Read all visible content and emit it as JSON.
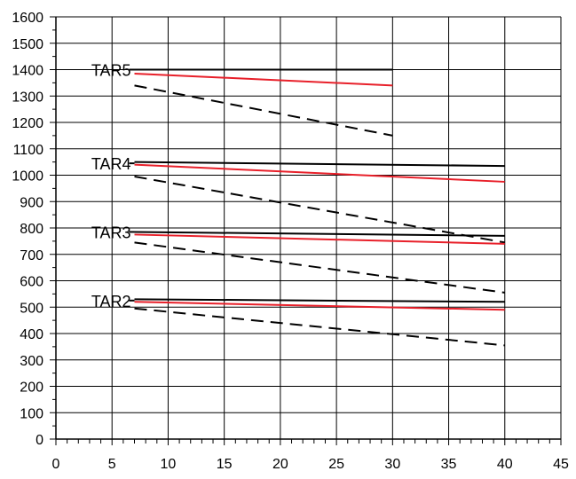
{
  "chart_data": {
    "type": "line",
    "title": "",
    "xlabel": "",
    "ylabel": "",
    "xlim": [
      0,
      45
    ],
    "ylim": [
      0,
      1600
    ],
    "x_ticks": [
      0,
      5,
      10,
      15,
      20,
      25,
      30,
      35,
      40,
      45
    ],
    "y_ticks": [
      0,
      100,
      200,
      300,
      400,
      500,
      600,
      700,
      800,
      900,
      1000,
      1100,
      1200,
      1300,
      1400,
      1500,
      1600
    ],
    "grid": true,
    "legend": "none",
    "colors": {
      "black": "#000000",
      "red": "#e8202a"
    },
    "groups": [
      {
        "label": "TAR5",
        "label_anchor": {
          "x": 7,
          "y": 1400
        },
        "series": [
          {
            "style": "solid",
            "color": "#000000",
            "x": [
              7,
              30
            ],
            "y": [
              1400,
              1400
            ]
          },
          {
            "style": "solid",
            "color": "#e8202a",
            "x": [
              7,
              30
            ],
            "y": [
              1385,
              1340
            ]
          },
          {
            "style": "dashed",
            "color": "#000000",
            "x": [
              7,
              30
            ],
            "y": [
              1340,
              1150
            ]
          }
        ]
      },
      {
        "label": "TAR4",
        "label_anchor": {
          "x": 7,
          "y": 1045
        },
        "series": [
          {
            "style": "solid",
            "color": "#000000",
            "x": [
              7,
              40
            ],
            "y": [
              1050,
              1035
            ]
          },
          {
            "style": "solid",
            "color": "#e8202a",
            "x": [
              7,
              40
            ],
            "y": [
              1040,
              975
            ]
          },
          {
            "style": "dashed",
            "color": "#000000",
            "x": [
              7,
              40
            ],
            "y": [
              995,
              745
            ]
          }
        ]
      },
      {
        "label": "TAR3",
        "label_anchor": {
          "x": 7,
          "y": 785
        },
        "series": [
          {
            "style": "solid",
            "color": "#000000",
            "x": [
              7,
              40
            ],
            "y": [
              785,
              770
            ]
          },
          {
            "style": "solid",
            "color": "#e8202a",
            "x": [
              7,
              40
            ],
            "y": [
              775,
              740
            ]
          },
          {
            "style": "dashed",
            "color": "#000000",
            "x": [
              7,
              40
            ],
            "y": [
              745,
              555
            ]
          }
        ]
      },
      {
        "label": "TAR2",
        "label_anchor": {
          "x": 7,
          "y": 525
        },
        "series": [
          {
            "style": "solid",
            "color": "#000000",
            "x": [
              7,
              40
            ],
            "y": [
              530,
              520
            ]
          },
          {
            "style": "solid",
            "color": "#e8202a",
            "x": [
              7,
              40
            ],
            "y": [
              520,
              490
            ]
          },
          {
            "style": "dashed",
            "color": "#000000",
            "x": [
              7,
              40
            ],
            "y": [
              495,
              355
            ]
          }
        ]
      }
    ]
  }
}
